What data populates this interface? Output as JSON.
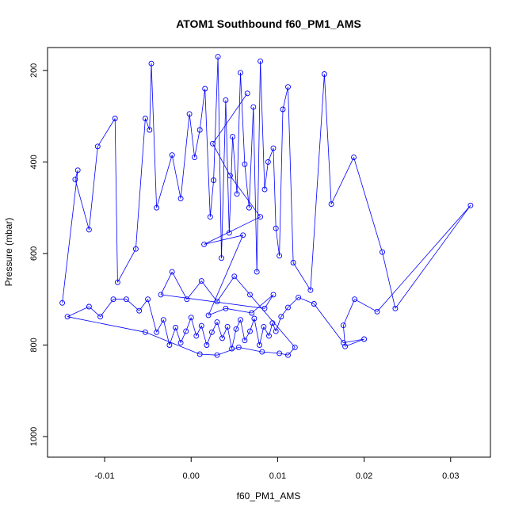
{
  "chart_data": {
    "type": "line",
    "title": "ATOM1 Southbound f60_PM1_AMS",
    "xlabel": "f60_PM1_AMS",
    "ylabel": "Pressure (mbar)",
    "xlim": [
      -0.0166,
      0.0346
    ],
    "ylim": [
      1045,
      150
    ],
    "y_reversed": true,
    "xticks": [
      -0.01,
      0.0,
      0.01,
      0.02,
      0.03
    ],
    "xtick_labels": [
      "-0.01",
      "0.00",
      "0.01",
      "0.02",
      "0.03"
    ],
    "yticks": [
      200,
      400,
      600,
      800,
      1000
    ],
    "ytick_labels": [
      "200",
      "400",
      "600",
      "800",
      "1000"
    ],
    "grid": false,
    "legend": "none",
    "series_color": "#0000ff",
    "marker": "open-circle",
    "points": [
      [
        -0.0149,
        708
      ],
      [
        -0.0131,
        418
      ],
      [
        -0.0134,
        438
      ],
      [
        -0.0118,
        548
      ],
      [
        -0.0108,
        366
      ],
      [
        -0.0088,
        305
      ],
      [
        -0.0085,
        663
      ],
      [
        -0.0064,
        590
      ],
      [
        -0.0053,
        305
      ],
      [
        -0.0048,
        330
      ],
      [
        -0.0046,
        185
      ],
      [
        -0.004,
        500
      ],
      [
        -0.0022,
        385
      ],
      [
        -0.0012,
        480
      ],
      [
        -0.0002,
        295
      ],
      [
        0.0004,
        390
      ],
      [
        0.001,
        330
      ],
      [
        0.0016,
        240
      ],
      [
        0.0022,
        520
      ],
      [
        0.0026,
        440
      ],
      [
        0.0031,
        170
      ],
      [
        0.0035,
        610
      ],
      [
        0.004,
        265
      ],
      [
        0.0044,
        555
      ],
      [
        0.0048,
        345
      ],
      [
        0.0053,
        470
      ],
      [
        0.0057,
        205
      ],
      [
        0.0062,
        405
      ],
      [
        0.0067,
        500
      ],
      [
        0.0072,
        280
      ],
      [
        0.0076,
        640
      ],
      [
        0.008,
        180
      ],
      [
        0.0085,
        460
      ],
      [
        0.0089,
        400
      ],
      [
        0.0095,
        370
      ],
      [
        0.0098,
        545
      ],
      [
        0.0102,
        605
      ],
      [
        0.0106,
        285
      ],
      [
        0.0112,
        236
      ],
      [
        0.0118,
        620
      ],
      [
        0.0138,
        680
      ],
      [
        0.0154,
        208
      ],
      [
        0.0162,
        492
      ],
      [
        0.0188,
        390
      ],
      [
        0.0221,
        597
      ],
      [
        0.0236,
        720
      ],
      [
        0.0323,
        495
      ],
      [
        0.0215,
        727
      ],
      [
        0.0189,
        700
      ],
      [
        0.0176,
        757
      ],
      [
        0.0178,
        803
      ],
      [
        0.02,
        787
      ],
      [
        0.0176,
        795
      ],
      [
        0.0142,
        710
      ],
      [
        0.0124,
        696
      ],
      [
        0.0112,
        718
      ],
      [
        0.0104,
        738
      ],
      [
        0.0098,
        770
      ],
      [
        0.0094,
        752
      ],
      [
        0.009,
        780
      ],
      [
        0.0084,
        760
      ],
      [
        0.0079,
        800
      ],
      [
        0.0073,
        742
      ],
      [
        0.0068,
        770
      ],
      [
        0.0062,
        790
      ],
      [
        0.0057,
        745
      ],
      [
        0.0052,
        765
      ],
      [
        0.0047,
        808
      ],
      [
        0.0042,
        760
      ],
      [
        0.0036,
        785
      ],
      [
        0.003,
        750
      ],
      [
        0.0024,
        772
      ],
      [
        0.0018,
        800
      ],
      [
        0.0012,
        758
      ],
      [
        0.0006,
        780
      ],
      [
        0.0,
        740
      ],
      [
        -0.0006,
        770
      ],
      [
        -0.0012,
        795
      ],
      [
        -0.0018,
        762
      ],
      [
        -0.0025,
        800
      ],
      [
        -0.0032,
        745
      ],
      [
        -0.004,
        772
      ],
      [
        -0.005,
        700
      ],
      [
        -0.006,
        725
      ],
      [
        -0.0075,
        700
      ],
      [
        -0.009,
        700
      ],
      [
        -0.0105,
        738
      ],
      [
        -0.0118,
        716
      ],
      [
        -0.0143,
        738
      ],
      [
        -0.0053,
        772
      ],
      [
        0.001,
        820
      ],
      [
        0.003,
        822
      ],
      [
        0.0055,
        805
      ],
      [
        0.0082,
        815
      ],
      [
        0.0102,
        818
      ],
      [
        0.0112,
        822
      ],
      [
        0.012,
        805
      ],
      [
        0.0068,
        690
      ],
      [
        0.005,
        650
      ],
      [
        0.003,
        705
      ],
      [
        0.0012,
        660
      ],
      [
        -0.0005,
        700
      ],
      [
        -0.0022,
        640
      ],
      [
        -0.0035,
        690
      ],
      [
        0.0085,
        720
      ],
      [
        0.0095,
        690
      ],
      [
        0.007,
        730
      ],
      [
        0.004,
        720
      ],
      [
        0.002,
        735
      ],
      [
        0.006,
        560
      ],
      [
        0.0015,
        580
      ],
      [
        0.008,
        520
      ],
      [
        0.0045,
        430
      ],
      [
        0.0025,
        360
      ],
      [
        0.0065,
        250
      ]
    ]
  }
}
